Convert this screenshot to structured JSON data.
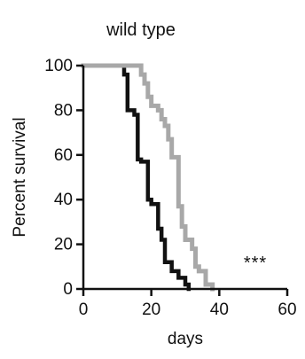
{
  "chart_data": {
    "type": "line",
    "title": "wild type",
    "xlabel": "days",
    "ylabel": "Percent survival",
    "xlim": [
      0,
      60
    ],
    "ylim": [
      0,
      100
    ],
    "xticks": [
      0,
      20,
      40,
      60
    ],
    "yticks": [
      0,
      20,
      40,
      60,
      80,
      100
    ],
    "grid": false,
    "step": true,
    "annotation": "***",
    "series": [
      {
        "color": "#111111",
        "x": [
          0,
          10,
          12,
          13,
          15,
          16,
          17,
          19,
          20,
          22,
          23,
          24,
          26,
          28,
          30,
          31
        ],
        "y": [
          100,
          100,
          96,
          80,
          78,
          58,
          57,
          40,
          38,
          27,
          22,
          12,
          8,
          5,
          2,
          0
        ]
      },
      {
        "color": "#a8a8a8",
        "x": [
          0,
          14,
          17,
          18,
          19,
          20,
          22,
          23,
          24,
          25,
          26,
          28,
          29,
          30,
          32,
          33,
          34,
          36,
          38
        ],
        "y": [
          100,
          100,
          96,
          92,
          86,
          82,
          80,
          76,
          73,
          67,
          59,
          37,
          28,
          22,
          18,
          10,
          8,
          2,
          0
        ]
      }
    ]
  }
}
